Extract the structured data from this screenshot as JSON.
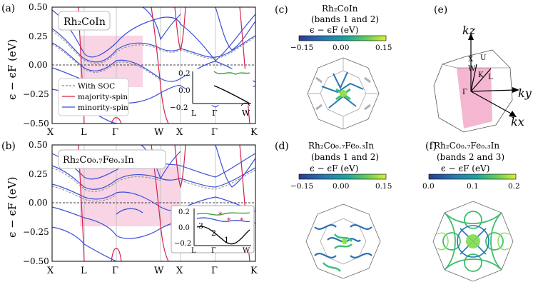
{
  "panels": {
    "a": {
      "label": "(a)",
      "material": "Rh₂CoIn"
    },
    "b": {
      "label": "(b)",
      "material": "Rh₂Co₀.₇Fe₀.₃In"
    },
    "c": {
      "label": "(c)",
      "material": "Rh₂CoIn",
      "bands": "(bands 1 and 2)",
      "colorbar_label": "ϵ − ϵF (eV)",
      "ticks": [
        "−0.15",
        "0.00",
        "0.15"
      ]
    },
    "d": {
      "label": "(d)",
      "material": "Rh₂Co₀.₇Fe₀.₃In",
      "bands": "(bands 1 and 2)",
      "colorbar_label": "ϵ − ϵF (eV)",
      "ticks": [
        "−0.15",
        "0.00",
        "0.15"
      ]
    },
    "e": {
      "label": "(e)",
      "axes": [
        "kz",
        "ky",
        "kx"
      ],
      "points": [
        "X",
        "U",
        "W",
        "K",
        "L",
        "Γ"
      ]
    },
    "f": {
      "label": "(f)",
      "material": "Rh₂Co₀.₇Fe₀.₃In",
      "bands": "(bands 2 and 3)",
      "colorbar_label": "ϵ − ϵF (eV)",
      "ticks": [
        "0.0",
        "0.1",
        "0.2"
      ]
    }
  },
  "legend": [
    "With SOC",
    "majority-spin",
    "minority-spin"
  ],
  "ylabel": "ϵ − ϵF (eV)",
  "yticks": [
    "0.50",
    "0.25",
    "0.00",
    "−0.25",
    "−0.50"
  ],
  "kpath": [
    "X",
    "L",
    "Γ",
    "W",
    "X",
    "Γ",
    "K"
  ],
  "inset_a": {
    "yticks": [
      "0.2",
      "0.0",
      "−0.2"
    ],
    "xticks": [
      "L",
      "Γ",
      "W"
    ]
  },
  "inset_b": {
    "yticks": [
      "0.2",
      "0.0",
      "−0.2"
    ],
    "xticks": [
      "L",
      "Γ",
      "W"
    ],
    "band_labels": [
      "3",
      "2",
      "1"
    ]
  },
  "colors": {
    "soc": "#888888",
    "majority": "#d6204a",
    "minority": "#3a4fd8",
    "highlight": "#f6c6dc",
    "inset_green": "#2ca02c"
  }
}
